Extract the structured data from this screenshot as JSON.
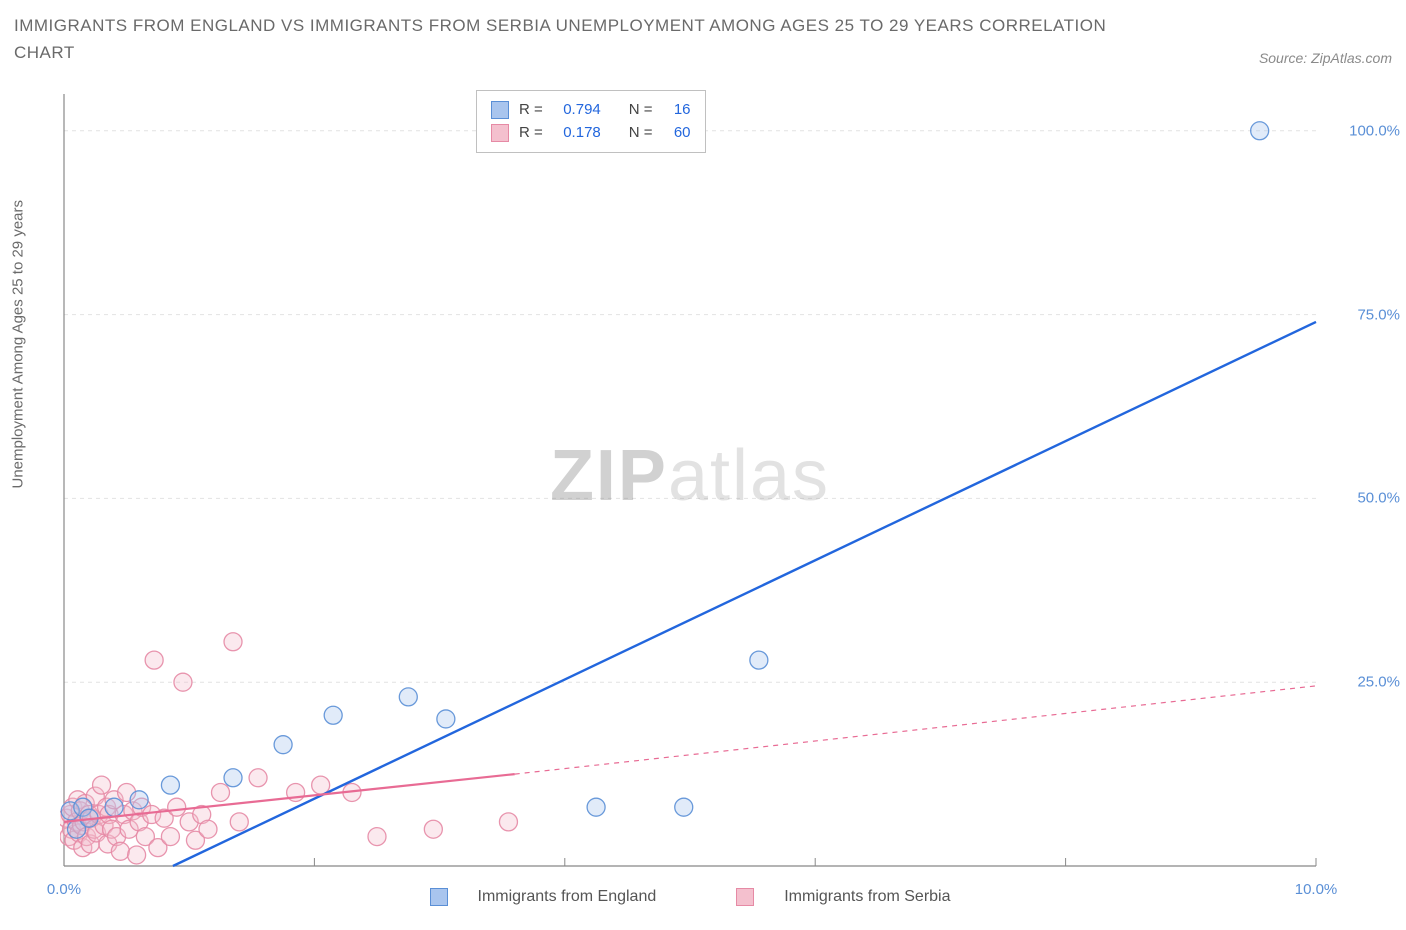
{
  "title": "IMMIGRANTS FROM ENGLAND VS IMMIGRANTS FROM SERBIA UNEMPLOYMENT AMONG AGES 25 TO 29 YEARS CORRELATION CHART",
  "source_label": "Source: ZipAtlas.com",
  "ylabel": "Unemployment Among Ages 25 to 29 years",
  "watermark_bold": "ZIP",
  "watermark_light": "atlas",
  "chart": {
    "type": "scatter",
    "xlim": [
      0,
      10
    ],
    "ylim": [
      0,
      105
    ],
    "xtick_positions": [
      0,
      2,
      4,
      6,
      8,
      10
    ],
    "xtick_labels_shown": {
      "0": "0.0%",
      "10": "10.0%"
    },
    "ytick_positions": [
      25,
      50,
      75,
      100
    ],
    "ytick_labels": {
      "25": "25.0%",
      "50": "50.0%",
      "75": "75.0%",
      "100": "100.0%"
    },
    "grid_color": "#e2e2e2",
    "axis_color": "#888888",
    "background_color": "#ffffff",
    "point_radius": 9,
    "point_fill_opacity": 0.35,
    "point_stroke_opacity": 0.9,
    "series": [
      {
        "name": "Immigrants from England",
        "color_fill": "#a9c5ee",
        "color_stroke": "#5a8fd6",
        "R": "0.794",
        "N": "16",
        "points": [
          [
            0.05,
            7.5
          ],
          [
            0.1,
            5.0
          ],
          [
            0.15,
            8.0
          ],
          [
            0.2,
            6.5
          ],
          [
            0.4,
            8.0
          ],
          [
            0.6,
            9.0
          ],
          [
            0.85,
            11.0
          ],
          [
            1.35,
            12.0
          ],
          [
            1.75,
            16.5
          ],
          [
            2.15,
            20.5
          ],
          [
            2.75,
            23.0
          ],
          [
            3.05,
            20.0
          ],
          [
            4.25,
            8.0
          ],
          [
            4.95,
            8.0
          ],
          [
            5.55,
            28.0
          ],
          [
            9.55,
            100.0
          ]
        ],
        "trend": {
          "x1": 0.5,
          "y1": -3.0,
          "x2": 10.0,
          "y2": 74.0,
          "color": "#2266dd",
          "width": 2.4,
          "dash": ""
        }
      },
      {
        "name": "Immigrants from Serbia",
        "color_fill": "#f4c0ce",
        "color_stroke": "#e68aa5",
        "R": "0.178",
        "N": "60",
        "points": [
          [
            0.02,
            6.5
          ],
          [
            0.04,
            4.0
          ],
          [
            0.05,
            7.0
          ],
          [
            0.06,
            5.0
          ],
          [
            0.07,
            8.0
          ],
          [
            0.08,
            3.5
          ],
          [
            0.1,
            6.0
          ],
          [
            0.11,
            9.0
          ],
          [
            0.12,
            4.5
          ],
          [
            0.13,
            7.5
          ],
          [
            0.14,
            5.5
          ],
          [
            0.15,
            2.5
          ],
          [
            0.16,
            6.0
          ],
          [
            0.17,
            8.5
          ],
          [
            0.18,
            4.0
          ],
          [
            0.2,
            7.0
          ],
          [
            0.21,
            3.0
          ],
          [
            0.22,
            6.5
          ],
          [
            0.24,
            5.0
          ],
          [
            0.25,
            9.5
          ],
          [
            0.26,
            4.5
          ],
          [
            0.28,
            7.0
          ],
          [
            0.3,
            11.0
          ],
          [
            0.32,
            5.5
          ],
          [
            0.34,
            8.0
          ],
          [
            0.35,
            3.0
          ],
          [
            0.36,
            7.0
          ],
          [
            0.38,
            5.0
          ],
          [
            0.4,
            9.0
          ],
          [
            0.42,
            4.0
          ],
          [
            0.45,
            2.0
          ],
          [
            0.48,
            7.0
          ],
          [
            0.5,
            10.0
          ],
          [
            0.52,
            5.0
          ],
          [
            0.55,
            7.5
          ],
          [
            0.58,
            1.5
          ],
          [
            0.6,
            6.0
          ],
          [
            0.62,
            8.0
          ],
          [
            0.65,
            4.0
          ],
          [
            0.7,
            7.0
          ],
          [
            0.72,
            28.0
          ],
          [
            0.75,
            2.5
          ],
          [
            0.8,
            6.5
          ],
          [
            0.85,
            4.0
          ],
          [
            0.9,
            8.0
          ],
          [
            0.95,
            25.0
          ],
          [
            1.0,
            6.0
          ],
          [
            1.05,
            3.5
          ],
          [
            1.1,
            7.0
          ],
          [
            1.15,
            5.0
          ],
          [
            1.25,
            10.0
          ],
          [
            1.35,
            30.5
          ],
          [
            1.4,
            6.0
          ],
          [
            1.55,
            12.0
          ],
          [
            1.85,
            10.0
          ],
          [
            2.05,
            11.0
          ],
          [
            2.3,
            10.0
          ],
          [
            2.5,
            4.0
          ],
          [
            2.95,
            5.0
          ],
          [
            3.55,
            6.0
          ]
        ],
        "trend_solid": {
          "x1": 0.0,
          "y1": 6.0,
          "x2": 3.6,
          "y2": 12.5,
          "color": "#e86b94",
          "width": 2.2
        },
        "trend_dash": {
          "x1": 3.6,
          "y1": 12.5,
          "x2": 10.0,
          "y2": 24.5,
          "color": "#e86b94",
          "width": 1.2,
          "dash": "5,5"
        }
      }
    ]
  },
  "legend": {
    "series1_label": "Immigrants from England",
    "series2_label": "Immigrants from Serbia"
  },
  "stats_box": {
    "r_label": "R =",
    "n_label": "N ="
  }
}
